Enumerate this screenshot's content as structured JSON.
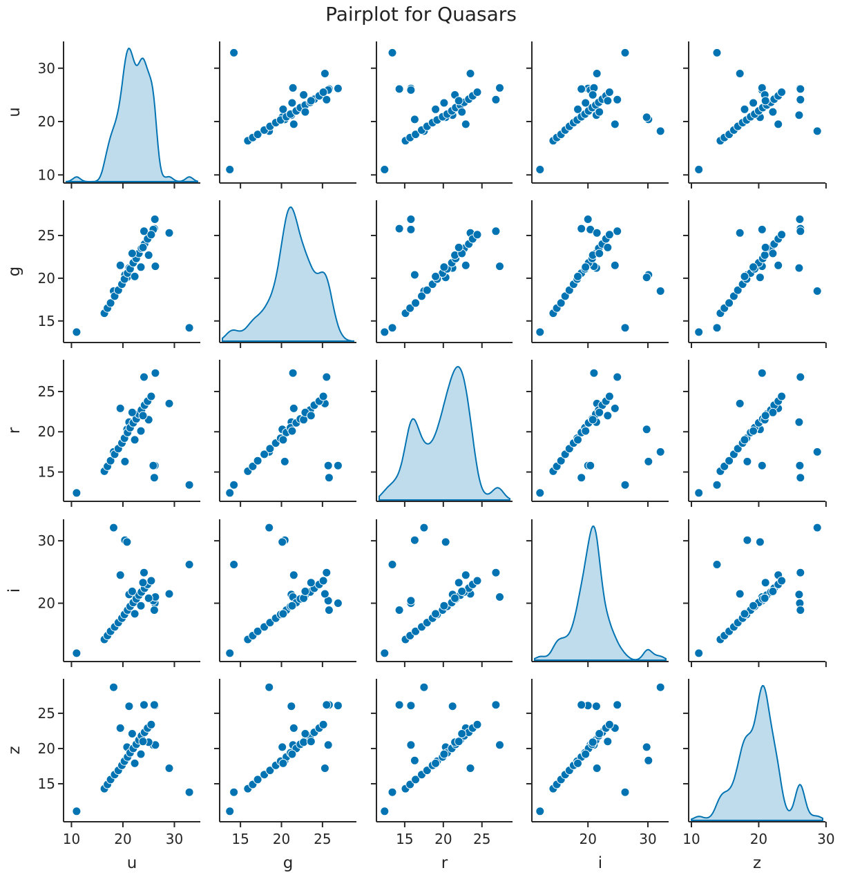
{
  "chart_data": {
    "type": "scatter",
    "title": "Pairplot for Quasars",
    "variables": [
      "u",
      "g",
      "r",
      "i",
      "z"
    ],
    "color": "#0173b2",
    "diagonal": "kde",
    "ranges": {
      "u": [
        9.0,
        34.5
      ],
      "g": [
        12.8,
        28.8
      ],
      "r": [
        11.7,
        28.6
      ],
      "i": [
        11.1,
        33.0
      ],
      "z": [
        10.0,
        29.5
      ]
    },
    "ticks": {
      "u": [
        10,
        20,
        30
      ],
      "g": [
        15,
        20,
        25
      ],
      "r": [
        15,
        20,
        25
      ],
      "i": [
        20,
        30
      ],
      "z": [
        10,
        20,
        30
      ]
    },
    "tick_labels": {
      "u": [
        "10",
        "20",
        "30"
      ],
      "g": [
        "15",
        "20",
        "25"
      ],
      "r": [
        "15",
        "20",
        "25"
      ],
      "i": [
        "20",
        "30"
      ],
      "z": [
        "10",
        "20",
        "30"
      ]
    },
    "y_ticks": {
      "u": [
        10,
        20,
        30
      ],
      "g": [
        15,
        20,
        25
      ],
      "r": [
        15,
        20,
        25
      ],
      "i": [
        20,
        30
      ],
      "z": [
        15,
        20,
        25
      ]
    },
    "y_tick_labels": {
      "u": [
        "10",
        "20",
        "30"
      ],
      "g": [
        "15",
        "20",
        "25"
      ],
      "r": [
        "15",
        "20",
        "25"
      ],
      "i": [
        "20",
        "30"
      ],
      "z": [
        "15",
        "20",
        "25"
      ]
    },
    "points": {
      "u": [
        11.0,
        32.9,
        18.2,
        20.4,
        20.8,
        21.2,
        26.2,
        26.1,
        25.9,
        19.5,
        26.3,
        29.0,
        24.1,
        16.4,
        17.0,
        17.6,
        18.4,
        19.1,
        19.8,
        20.3,
        20.9,
        21.4,
        22.0,
        22.6,
        23.1,
        23.6,
        24.2,
        24.8,
        25.5,
        22.3,
        23.5,
        25.0,
        21.8,
        23.9
      ],
      "g": [
        13.7,
        14.2,
        18.5,
        20.4,
        20.1,
        21.2,
        26.9,
        25.8,
        25.7,
        21.5,
        21.4,
        25.3,
        25.5,
        15.9,
        16.5,
        17.1,
        17.9,
        18.6,
        19.3,
        19.9,
        20.6,
        21.1,
        21.8,
        22.3,
        22.9,
        23.5,
        24.0,
        24.6,
        25.1,
        20.2,
        21.3,
        22.7,
        22.9,
        23.6
      ],
      "r": [
        12.4,
        13.4,
        17.5,
        16.3,
        20.3,
        21.2,
        15.8,
        14.3,
        15.8,
        22.9,
        27.3,
        23.5,
        26.8,
        15.1,
        15.7,
        16.4,
        17.2,
        17.9,
        18.6,
        19.2,
        19.9,
        20.5,
        21.1,
        21.6,
        22.2,
        22.7,
        23.3,
        23.8,
        24.4,
        19.0,
        20.1,
        21.5,
        22.4,
        22.0
      ],
      "i": [
        12.0,
        26.2,
        32.1,
        30.1,
        29.8,
        21.4,
        20.0,
        18.9,
        20.4,
        24.5,
        21.0,
        21.5,
        24.9,
        14.2,
        14.8,
        15.5,
        16.2,
        16.9,
        17.6,
        18.2,
        18.9,
        19.5,
        20.1,
        20.7,
        21.3,
        21.8,
        22.4,
        23.0,
        23.6,
        18.3,
        19.6,
        20.8,
        21.9,
        23.3
      ],
      "z": [
        11.1,
        13.8,
        28.7,
        18.3,
        20.2,
        26.0,
        26.1,
        26.2,
        20.5,
        22.9,
        20.5,
        17.2,
        26.2,
        14.3,
        14.9,
        15.6,
        16.3,
        16.9,
        17.6,
        18.2,
        18.8,
        19.4,
        20.0,
        20.6,
        21.2,
        21.8,
        22.3,
        22.9,
        23.4,
        17.9,
        19.2,
        20.9,
        22.1,
        21.0
      ]
    }
  }
}
